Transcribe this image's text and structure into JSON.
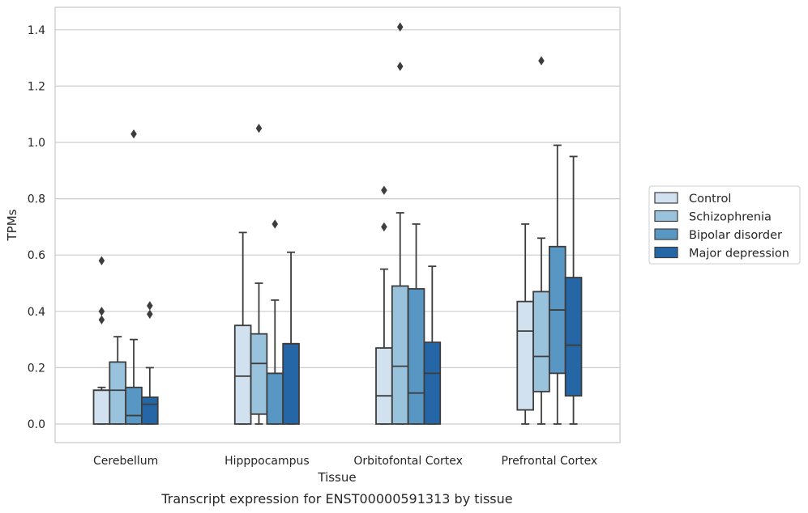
{
  "chart_data": {
    "type": "box",
    "caption": "Transcript expression for ENST00000591313 by tissue",
    "xlabel": "Tissue",
    "ylabel": "TPMs",
    "ylim": [
      -0.07,
      1.48
    ],
    "yticks": [
      0.0,
      0.2,
      0.4,
      0.6,
      0.8,
      1.0,
      1.2,
      1.4
    ],
    "ytick_labels": [
      "0.0",
      "0.2",
      "0.4",
      "0.6",
      "0.8",
      "1.0",
      "1.2",
      "1.4"
    ],
    "grid": true,
    "legend_position": "right",
    "categories": [
      "Cerebellum",
      "Hipppocampus",
      "Orbitofontal Cortex",
      "Prefrontal Cortex"
    ],
    "series": [
      {
        "name": "Control",
        "color": "#d1e1f0",
        "boxes": [
          {
            "whisker_low": 0.0,
            "q1": 0.0,
            "median": 0.12,
            "q3": 0.12,
            "whisker_high": 0.13,
            "outliers": [
              0.58,
              0.4,
              0.37
            ]
          },
          {
            "whisker_low": 0.0,
            "q1": 0.0,
            "median": 0.17,
            "q3": 0.35,
            "whisker_high": 0.68,
            "outliers": []
          },
          {
            "whisker_low": 0.0,
            "q1": 0.0,
            "median": 0.1,
            "q3": 0.27,
            "whisker_high": 0.55,
            "outliers": [
              0.83,
              0.7
            ]
          },
          {
            "whisker_low": 0.0,
            "q1": 0.05,
            "median": 0.33,
            "q3": 0.435,
            "whisker_high": 0.71,
            "outliers": []
          }
        ]
      },
      {
        "name": "Schizophrenia",
        "color": "#99c3dc",
        "boxes": [
          {
            "whisker_low": 0.0,
            "q1": 0.0,
            "median": 0.12,
            "q3": 0.22,
            "whisker_high": 0.31,
            "outliers": []
          },
          {
            "whisker_low": 0.0,
            "q1": 0.035,
            "median": 0.215,
            "q3": 0.32,
            "whisker_high": 0.5,
            "outliers": [
              1.05
            ]
          },
          {
            "whisker_low": 0.0,
            "q1": 0.0,
            "median": 0.205,
            "q3": 0.49,
            "whisker_high": 0.75,
            "outliers": [
              1.41,
              1.27
            ]
          },
          {
            "whisker_low": 0.0,
            "q1": 0.115,
            "median": 0.24,
            "q3": 0.47,
            "whisker_high": 0.66,
            "outliers": [
              1.29
            ]
          }
        ]
      },
      {
        "name": "Bipolar disorder",
        "color": "#5896c4",
        "boxes": [
          {
            "whisker_low": 0.0,
            "q1": 0.0,
            "median": 0.03,
            "q3": 0.13,
            "whisker_high": 0.3,
            "outliers": [
              1.03
            ]
          },
          {
            "whisker_low": 0.0,
            "q1": 0.0,
            "median": 0.18,
            "q3": 0.18,
            "whisker_high": 0.44,
            "outliers": [
              0.71
            ]
          },
          {
            "whisker_low": 0.0,
            "q1": 0.0,
            "median": 0.11,
            "q3": 0.48,
            "whisker_high": 0.71,
            "outliers": []
          },
          {
            "whisker_low": 0.0,
            "q1": 0.18,
            "median": 0.405,
            "q3": 0.63,
            "whisker_high": 0.99,
            "outliers": []
          }
        ]
      },
      {
        "name": "Major depression",
        "color": "#2466a6",
        "boxes": [
          {
            "whisker_low": 0.0,
            "q1": 0.0,
            "median": 0.07,
            "q3": 0.095,
            "whisker_high": 0.2,
            "outliers": [
              0.42,
              0.39
            ]
          },
          {
            "whisker_low": 0.0,
            "q1": 0.0,
            "median": 0.285,
            "q3": 0.285,
            "whisker_high": 0.61,
            "outliers": []
          },
          {
            "whisker_low": 0.0,
            "q1": 0.0,
            "median": 0.18,
            "q3": 0.29,
            "whisker_high": 0.56,
            "outliers": []
          },
          {
            "whisker_low": 0.0,
            "q1": 0.1,
            "median": 0.28,
            "q3": 0.52,
            "whisker_high": 0.95,
            "outliers": []
          }
        ]
      }
    ],
    "colors": {
      "grid": "#cccccc",
      "frame": "#cccccc",
      "box_edge": "#3d3d3d",
      "outlier": "#3d3d3d",
      "legend_border": "#cccccc"
    }
  }
}
